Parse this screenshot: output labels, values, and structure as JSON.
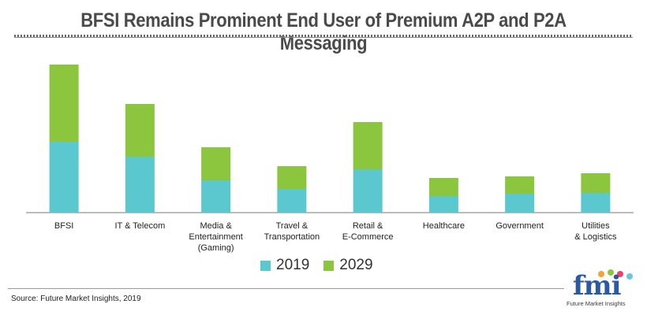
{
  "title": "BFSI Remains Prominent End User of Premium A2P and P2A Messaging",
  "source": "Source: Future Market Insights, 2019",
  "logo": {
    "mark": "fmi",
    "caption": "Future Market Insights"
  },
  "colors": {
    "series_2019": "#5bc8d0",
    "series_2029": "#8cc63f",
    "axis": "#7a7a7a"
  },
  "chart_data": {
    "type": "bar",
    "stacked": true,
    "title": "BFSI Remains Prominent End User of Premium A2P and P2A Messaging",
    "xlabel": "",
    "ylabel": "",
    "categories": [
      [
        "BFSI"
      ],
      [
        "IT & Telecom"
      ],
      [
        "Media &",
        "Entertainment",
        "(Gaming)"
      ],
      [
        "Travel &",
        "Transportation"
      ],
      [
        "Retail &",
        "E-Commerce"
      ],
      [
        "Healthcare"
      ],
      [
        "Government"
      ],
      [
        "Utilities",
        "& Logistics"
      ]
    ],
    "series": [
      {
        "name": "2019",
        "color": "#5bc8d0",
        "values": [
          90,
          71,
          41,
          30,
          55,
          21,
          24,
          25
        ]
      },
      {
        "name": "2029",
        "color": "#8cc63f",
        "values": [
          98,
          67,
          42,
          29,
          60,
          23,
          22,
          25
        ]
      }
    ],
    "ylim": [
      0,
      200
    ],
    "grid": false,
    "legend_position": "bottom"
  }
}
